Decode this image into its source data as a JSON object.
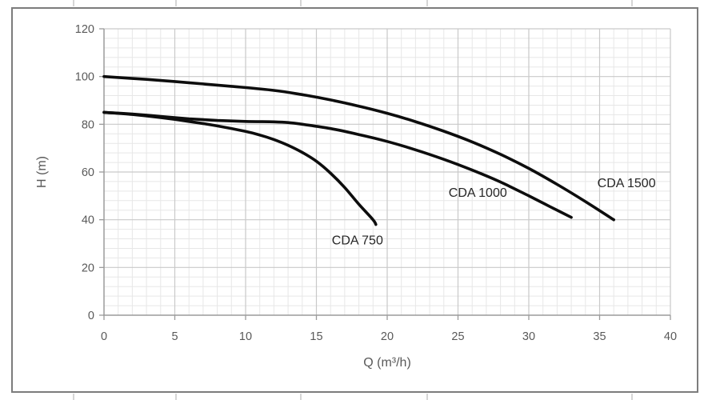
{
  "chart_data": {
    "type": "line",
    "title": "",
    "xlabel": "Q (m³/h)",
    "ylabel": "H (m)",
    "xlim": [
      0,
      40
    ],
    "ylim": [
      0,
      120
    ],
    "x_ticks": [
      0,
      5,
      10,
      15,
      20,
      25,
      30,
      35,
      40
    ],
    "y_ticks": [
      0,
      20,
      40,
      60,
      80,
      100,
      120
    ],
    "x_minor_step": 1,
    "y_minor_step": 4,
    "grid": true,
    "legend_position": "none",
    "series": [
      {
        "name": "CDA 750",
        "points": [
          [
            0,
            85
          ],
          [
            2,
            84.1
          ],
          [
            4,
            82.8
          ],
          [
            6,
            81.2
          ],
          [
            8,
            79.3
          ],
          [
            10,
            77
          ],
          [
            11,
            75.5
          ],
          [
            12,
            73.6
          ],
          [
            13,
            71.2
          ],
          [
            14,
            68.2
          ],
          [
            15,
            64.5
          ],
          [
            16,
            59.5
          ],
          [
            17,
            53.5
          ],
          [
            18,
            46.5
          ],
          [
            19,
            40
          ],
          [
            19.2,
            38
          ]
        ],
        "label_pos": {
          "q": 17.9,
          "h": 31.5
        }
      },
      {
        "name": "CDA 1000",
        "points": [
          [
            0,
            85
          ],
          [
            2,
            84.3
          ],
          [
            4,
            83.3
          ],
          [
            6,
            82.3
          ],
          [
            8,
            81.6
          ],
          [
            10,
            81.2
          ],
          [
            12,
            81
          ],
          [
            13,
            80.7
          ],
          [
            14,
            80
          ],
          [
            16,
            78.2
          ],
          [
            18,
            75.7
          ],
          [
            20,
            72.8
          ],
          [
            22,
            69.3
          ],
          [
            24,
            65.3
          ],
          [
            26,
            60.8
          ],
          [
            28,
            55.8
          ],
          [
            30,
            50
          ],
          [
            31.5,
            45.5
          ],
          [
            33,
            41
          ]
        ],
        "label_pos": {
          "q": 26.4,
          "h": 51.5
        }
      },
      {
        "name": "CDA 1500",
        "points": [
          [
            0,
            100
          ],
          [
            3,
            98.8
          ],
          [
            6,
            97.4
          ],
          [
            9,
            95.9
          ],
          [
            12,
            94.2
          ],
          [
            14,
            92.4
          ],
          [
            16,
            90.2
          ],
          [
            18,
            87.6
          ],
          [
            20,
            84.6
          ],
          [
            22,
            81.1
          ],
          [
            24,
            77.1
          ],
          [
            26,
            72.6
          ],
          [
            28,
            67.4
          ],
          [
            30,
            61.5
          ],
          [
            32,
            54.8
          ],
          [
            34,
            47.6
          ],
          [
            36,
            40
          ]
        ],
        "label_pos": {
          "q": 36.9,
          "h": 55.5
        }
      }
    ],
    "colors": {
      "curve": "#0d0d0d",
      "grid_major": "#c9c9c9",
      "grid_minor": "#e7e7e7",
      "axis": "#9b9b9b",
      "tick_text": "#595959",
      "series_label_text": "#262626",
      "chart_border": "#7d7d7d"
    }
  }
}
